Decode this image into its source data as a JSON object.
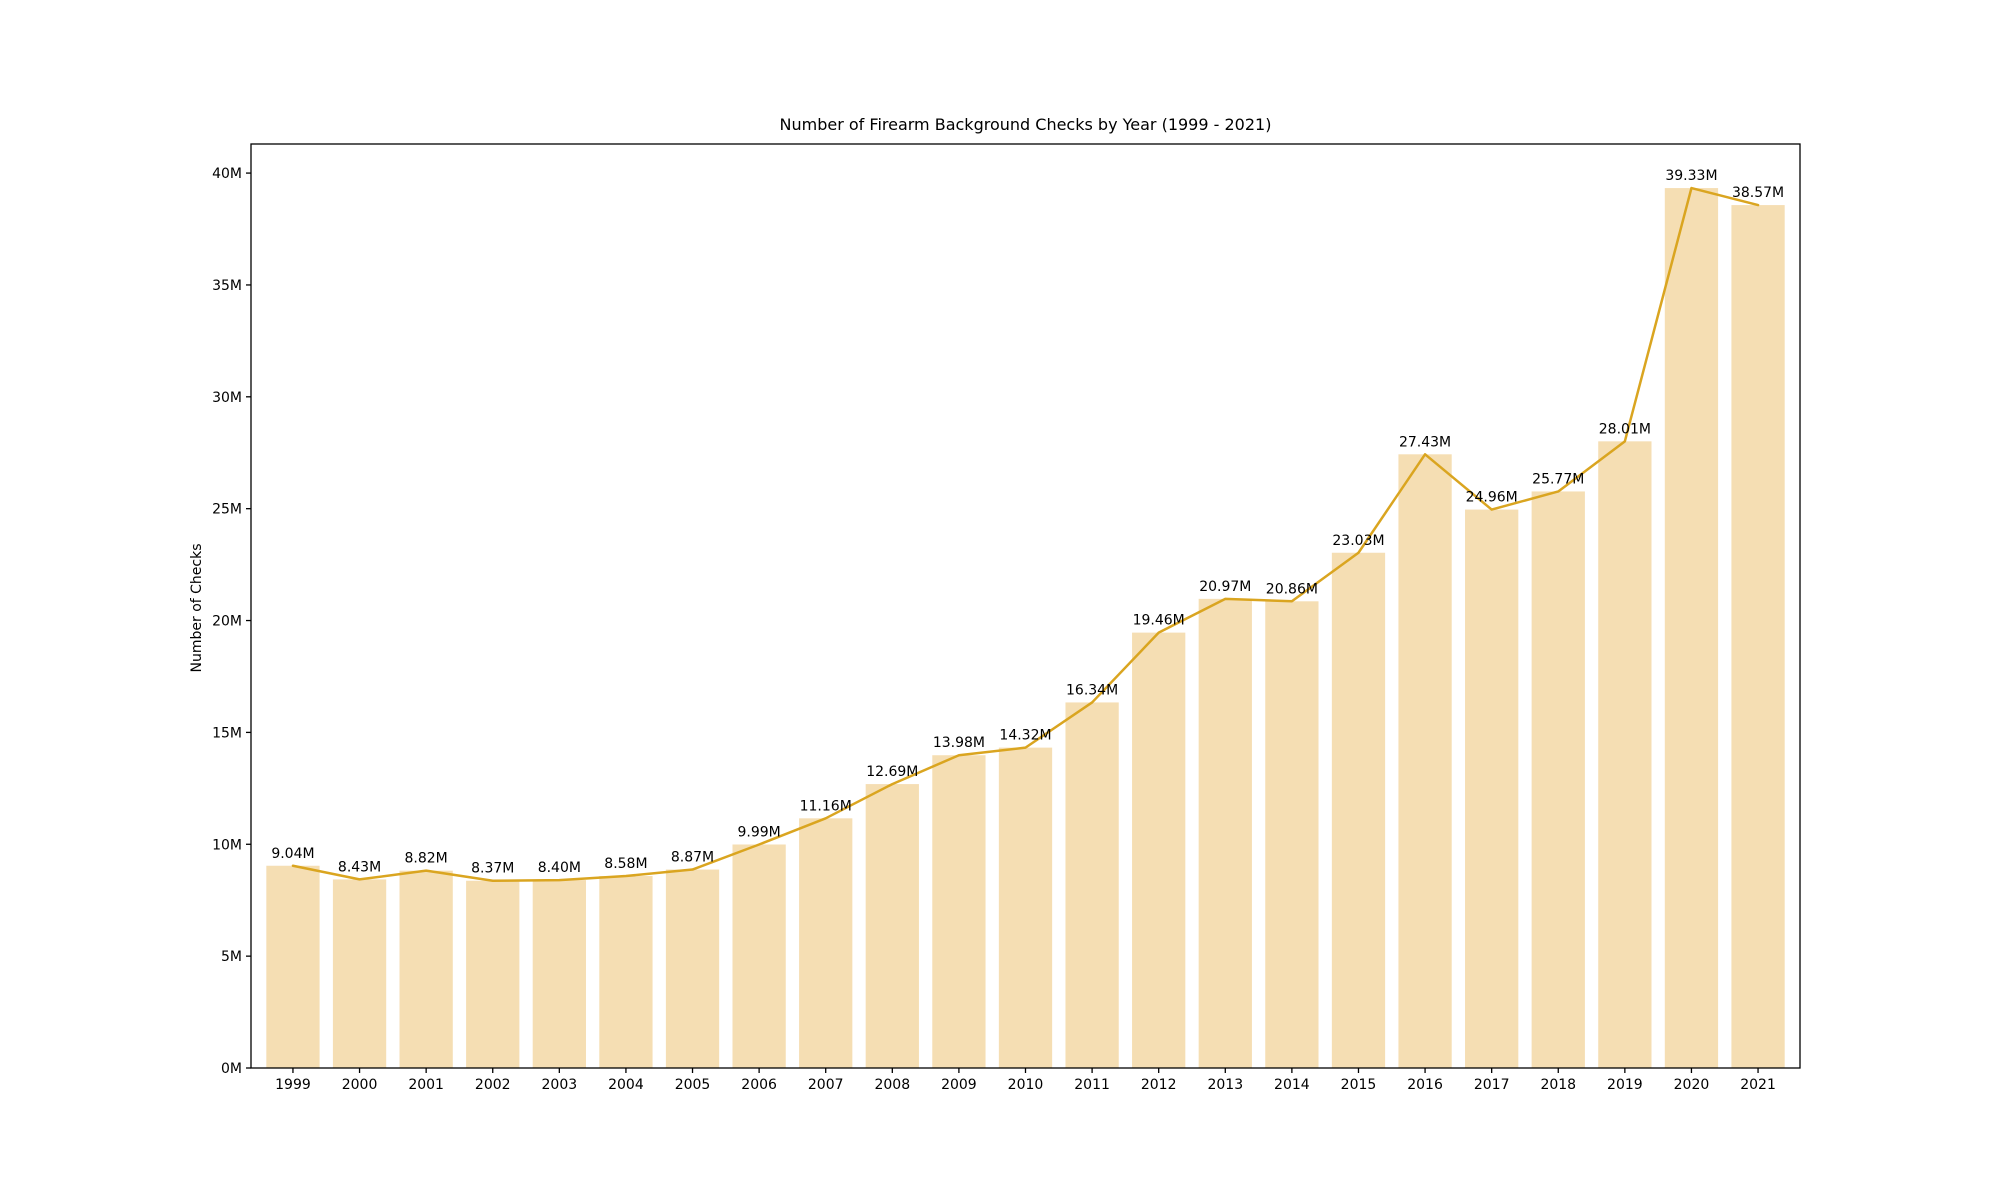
{
  "chart_data": {
    "type": "bar",
    "title": "Number of Firearm Background Checks by Year (1999 - 2021)",
    "xlabel": "",
    "ylabel": "Number of Checks",
    "categories": [
      "1999",
      "2000",
      "2001",
      "2002",
      "2003",
      "2004",
      "2005",
      "2006",
      "2007",
      "2008",
      "2009",
      "2010",
      "2011",
      "2012",
      "2013",
      "2014",
      "2015",
      "2016",
      "2017",
      "2018",
      "2019",
      "2020",
      "2021"
    ],
    "series": [
      {
        "name": "Background checks (bars)",
        "type": "bar",
        "color": "#F5DEB3",
        "values": [
          9.04,
          8.43,
          8.82,
          8.37,
          8.4,
          8.58,
          8.87,
          9.99,
          11.16,
          12.69,
          13.98,
          14.32,
          16.34,
          19.46,
          20.97,
          20.86,
          23.03,
          27.43,
          24.96,
          25.77,
          28.01,
          39.33,
          38.57
        ]
      },
      {
        "name": "Background checks (trend line)",
        "type": "line",
        "color": "#DAA520",
        "values": [
          9.04,
          8.43,
          8.82,
          8.37,
          8.4,
          8.58,
          8.87,
          9.99,
          11.16,
          12.69,
          13.98,
          14.32,
          16.34,
          19.46,
          20.97,
          20.86,
          23.03,
          27.43,
          24.96,
          25.77,
          28.01,
          39.33,
          38.57
        ]
      }
    ],
    "value_labels": [
      "9.04M",
      "8.43M",
      "8.82M",
      "8.37M",
      "8.40M",
      "8.58M",
      "8.87M",
      "9.99M",
      "11.16M",
      "12.69M",
      "13.98M",
      "14.32M",
      "16.34M",
      "19.46M",
      "20.97M",
      "20.86M",
      "23.03M",
      "27.43M",
      "24.96M",
      "25.77M",
      "28.01M",
      "39.33M",
      "38.57M"
    ],
    "unit": "M",
    "y_ticks": {
      "values": [
        0,
        5,
        10,
        15,
        20,
        25,
        30,
        35,
        40
      ],
      "labels": [
        "0M",
        "5M",
        "10M",
        "15M",
        "20M",
        "25M",
        "30M",
        "35M",
        "40M"
      ]
    },
    "ylim": [
      0,
      41.3
    ],
    "xlim": [
      -0.63,
      22.63
    ],
    "grid": false,
    "legend": "none",
    "colors": {
      "bar": "#F5DEB3",
      "line": "#DAA520",
      "text": "#000000",
      "spine": "#000000",
      "background": "#ffffff"
    }
  }
}
